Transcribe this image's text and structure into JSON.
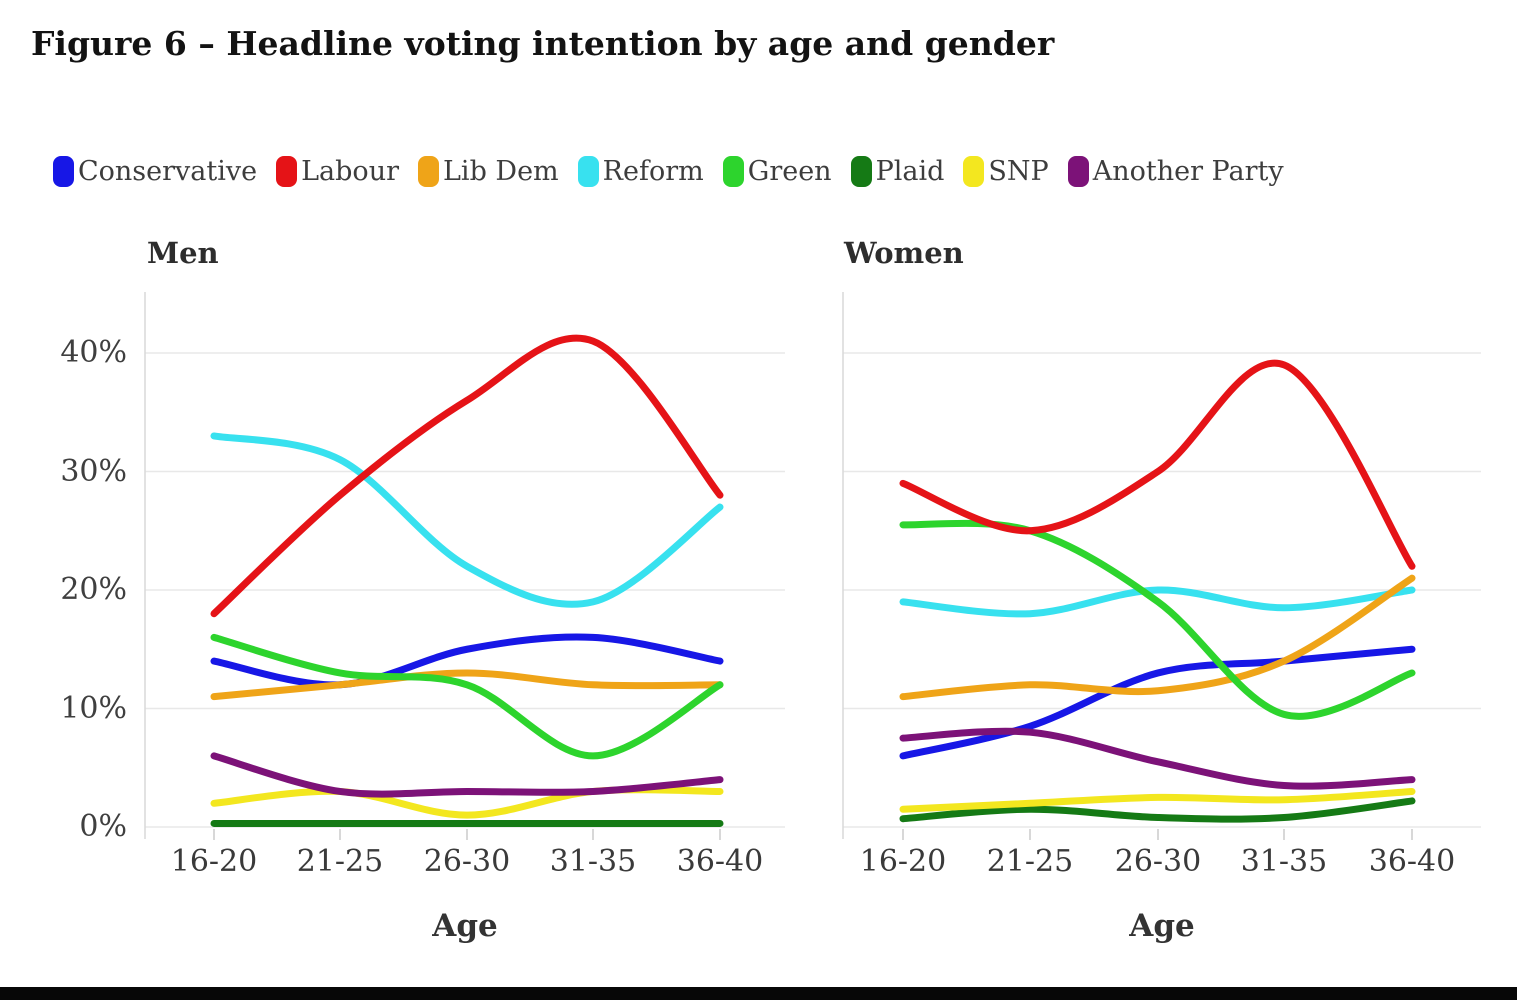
{
  "figure": {
    "title": "Figure 6 – Headline voting intention by age and gender"
  },
  "chart_data": {
    "type": "line",
    "categories": [
      "16-20",
      "21-25",
      "26-30",
      "31-35",
      "36-40"
    ],
    "xlabel": "Age",
    "ylim": [
      0,
      44
    ],
    "grid": true,
    "legend_position": "top",
    "yticks": [
      {
        "label": "0%",
        "value": 0
      },
      {
        "label": "10%",
        "value": 10
      },
      {
        "label": "20%",
        "value": 20
      },
      {
        "label": "30%",
        "value": 30
      },
      {
        "label": "40%",
        "value": 40
      }
    ],
    "parties": [
      {
        "name": "Conservative",
        "color": "#1717e6"
      },
      {
        "name": "Labour",
        "color": "#e51317"
      },
      {
        "name": "Lib Dem",
        "color": "#efa418"
      },
      {
        "name": "Reform",
        "color": "#38e1ef"
      },
      {
        "name": "Green",
        "color": "#2dd42d"
      },
      {
        "name": "Plaid",
        "color": "#157a15"
      },
      {
        "name": "SNP",
        "color": "#f3e71f"
      },
      {
        "name": "Another Party",
        "color": "#7c1278"
      }
    ],
    "draw_order": [
      "Plaid",
      "SNP",
      "Conservative",
      "Another Party",
      "Reform",
      "Lib Dem",
      "Green",
      "Labour"
    ],
    "charts": [
      {
        "title": "Men",
        "series": [
          {
            "name": "Conservative",
            "values": [
              14,
              12,
              15,
              16,
              14
            ]
          },
          {
            "name": "Labour",
            "values": [
              18,
              28,
              36,
              41,
              28
            ]
          },
          {
            "name": "Lib Dem",
            "values": [
              11,
              12,
              13,
              12,
              12
            ]
          },
          {
            "name": "Reform",
            "values": [
              33,
              31,
              22,
              19,
              27
            ]
          },
          {
            "name": "Green",
            "values": [
              16,
              13,
              12,
              6,
              12
            ]
          },
          {
            "name": "Plaid",
            "values": [
              0.3,
              0.3,
              0.3,
              0.3,
              0.3
            ]
          },
          {
            "name": "SNP",
            "values": [
              2,
              3,
              1,
              3,
              3
            ]
          },
          {
            "name": "Another Party",
            "values": [
              6,
              3,
              3,
              3,
              4
            ]
          }
        ]
      },
      {
        "title": "Women",
        "series": [
          {
            "name": "Conservative",
            "values": [
              6,
              8.5,
              13,
              14,
              15
            ]
          },
          {
            "name": "Labour",
            "values": [
              29,
              25,
              30,
              39,
              22
            ]
          },
          {
            "name": "Lib Dem",
            "values": [
              11,
              12,
              11.5,
              14,
              21
            ]
          },
          {
            "name": "Reform",
            "values": [
              19,
              18,
              20,
              18.5,
              20
            ]
          },
          {
            "name": "Green",
            "values": [
              25.5,
              25,
              19,
              9.5,
              13
            ]
          },
          {
            "name": "Plaid",
            "values": [
              0.7,
              1.5,
              0.8,
              0.8,
              2.2
            ]
          },
          {
            "name": "SNP",
            "values": [
              1.5,
              2,
              2.5,
              2.3,
              3
            ]
          },
          {
            "name": "Another Party",
            "values": [
              7.5,
              8,
              5.5,
              3.5,
              4
            ]
          }
        ]
      }
    ]
  }
}
